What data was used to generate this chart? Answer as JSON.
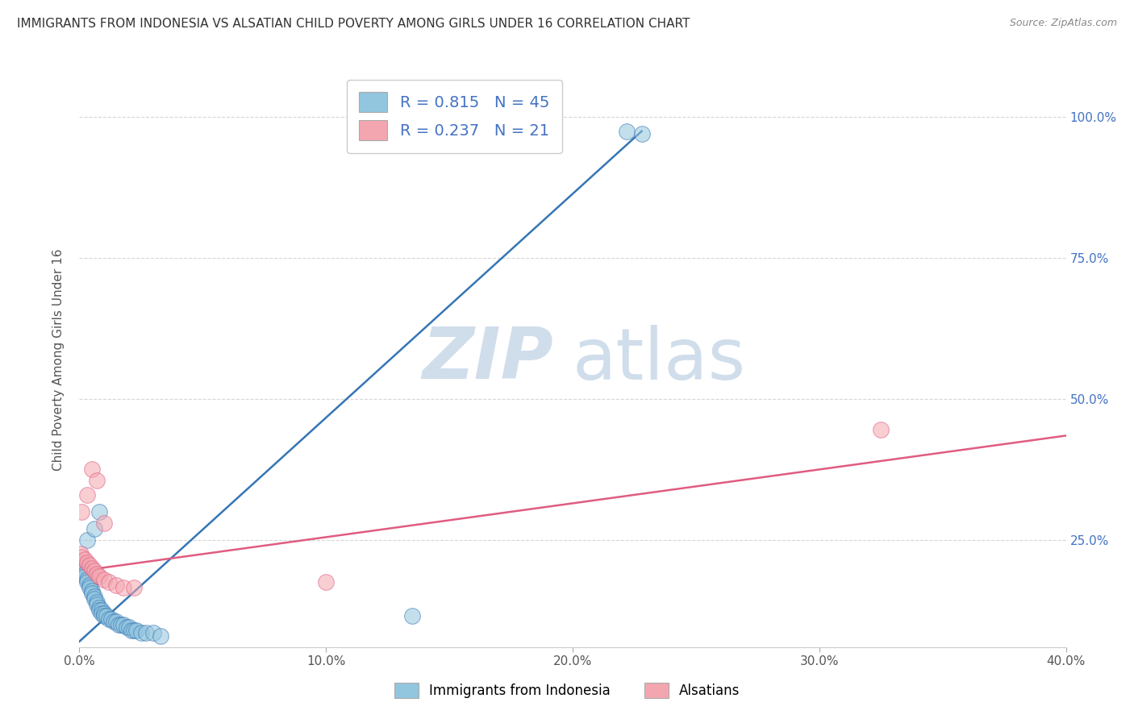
{
  "title": "IMMIGRANTS FROM INDONESIA VS ALSATIAN CHILD POVERTY AMONG GIRLS UNDER 16 CORRELATION CHART",
  "source": "Source: ZipAtlas.com",
  "ylabel": "Child Poverty Among Girls Under 16",
  "x_tick_labels": [
    "0.0%",
    "10.0%",
    "20.0%",
    "30.0%",
    "40.0%"
  ],
  "x_tick_values": [
    0.0,
    0.1,
    0.2,
    0.3,
    0.4
  ],
  "y_tick_labels": [
    "100.0%",
    "75.0%",
    "50.0%",
    "25.0%"
  ],
  "y_tick_values": [
    1.0,
    0.75,
    0.5,
    0.25
  ],
  "xlim": [
    0.0,
    0.4
  ],
  "ylim": [
    0.06,
    1.08
  ],
  "blue_R": 0.815,
  "blue_N": 45,
  "pink_R": 0.237,
  "pink_N": 21,
  "blue_color": "#92c5de",
  "pink_color": "#f4a6b0",
  "blue_line_color": "#3575b5",
  "pink_line_color": "#e05c80",
  "legend_label_blue": "Immigrants from Indonesia",
  "legend_label_pink": "Alsatians",
  "watermark_zip": "ZIP",
  "watermark_atlas": "atlas",
  "background_color": "#ffffff",
  "grid_color": "#cccccc",
  "title_color": "#333333",
  "blue_scatter_x": [
    0.222,
    0.228,
    0.0008,
    0.001,
    0.0012,
    0.0015,
    0.002,
    0.002,
    0.003,
    0.003,
    0.004,
    0.004,
    0.005,
    0.005,
    0.006,
    0.006,
    0.007,
    0.007,
    0.008,
    0.008,
    0.009,
    0.009,
    0.01,
    0.01,
    0.011,
    0.012,
    0.013,
    0.014,
    0.015,
    0.016,
    0.017,
    0.018,
    0.019,
    0.02,
    0.021,
    0.022,
    0.023,
    0.025,
    0.027,
    0.03,
    0.033,
    0.003,
    0.006,
    0.008,
    0.135
  ],
  "blue_scatter_y": [
    0.975,
    0.97,
    0.21,
    0.205,
    0.2,
    0.195,
    0.19,
    0.185,
    0.18,
    0.175,
    0.17,
    0.165,
    0.16,
    0.155,
    0.15,
    0.145,
    0.14,
    0.135,
    0.13,
    0.125,
    0.125,
    0.12,
    0.12,
    0.115,
    0.115,
    0.11,
    0.11,
    0.105,
    0.105,
    0.1,
    0.1,
    0.1,
    0.095,
    0.095,
    0.09,
    0.09,
    0.09,
    0.085,
    0.085,
    0.085,
    0.08,
    0.25,
    0.27,
    0.3,
    0.115
  ],
  "pink_scatter_x": [
    0.0005,
    0.001,
    0.002,
    0.003,
    0.004,
    0.005,
    0.006,
    0.007,
    0.008,
    0.01,
    0.012,
    0.015,
    0.018,
    0.022,
    0.0008,
    0.003,
    0.005,
    0.007,
    0.01,
    0.325,
    0.1
  ],
  "pink_scatter_y": [
    0.225,
    0.22,
    0.215,
    0.21,
    0.205,
    0.2,
    0.195,
    0.19,
    0.185,
    0.18,
    0.175,
    0.17,
    0.165,
    0.165,
    0.3,
    0.33,
    0.375,
    0.355,
    0.28,
    0.445,
    0.175
  ],
  "blue_line_x": [
    0.0,
    0.228
  ],
  "blue_line_y": [
    0.07,
    0.975
  ],
  "pink_line_x": [
    0.0,
    0.4
  ],
  "pink_line_y": [
    0.195,
    0.435
  ]
}
